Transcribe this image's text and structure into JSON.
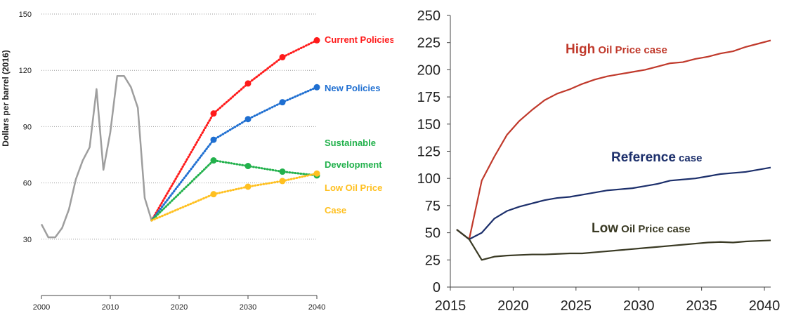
{
  "chart_data": [
    {
      "type": "line",
      "title": "",
      "xlabel": "",
      "ylabel": "Dollars per barrel (2016)",
      "xlim": [
        2000,
        2040
      ],
      "ylim": [
        0,
        150
      ],
      "x_ticks": [
        "2000",
        "2010",
        "2020",
        "2030",
        "2040"
      ],
      "y_ticks": [
        "30",
        "60",
        "90",
        "120",
        "150"
      ],
      "grid": "horizontal dotted",
      "series": [
        {
          "name": "",
          "color": "#9e9e9e",
          "style": "solid",
          "x": [
            2000,
            2001,
            2002,
            2003,
            2004,
            2005,
            2006,
            2007,
            2008,
            2009,
            2010,
            2011,
            2012,
            2013,
            2014,
            2015,
            2016
          ],
          "y": [
            38,
            31,
            31,
            36,
            46,
            62,
            72,
            79,
            110,
            67,
            87,
            117,
            117,
            111,
            100,
            52,
            40
          ]
        },
        {
          "name": "Current Policies",
          "color": "#ff1a1a",
          "style": "dotted",
          "x": [
            2016,
            2025,
            2030,
            2035,
            2040
          ],
          "y": [
            40,
            97,
            113,
            127,
            136
          ]
        },
        {
          "name": "New Policies",
          "color": "#1f6fd1",
          "style": "dotted",
          "x": [
            2016,
            2025,
            2030,
            2035,
            2040
          ],
          "y": [
            40,
            83,
            94,
            103,
            111
          ]
        },
        {
          "name": "Sustainable Development",
          "color": "#22b14c",
          "style": "dotted",
          "x": [
            2016,
            2025,
            2030,
            2035,
            2040
          ],
          "y": [
            40,
            72,
            69,
            66,
            64
          ]
        },
        {
          "name": "Low Oil Price Case",
          "color": "#ffc020",
          "style": "dotted",
          "x": [
            2016,
            2025,
            2030,
            2035,
            2040
          ],
          "y": [
            40,
            54,
            58,
            61,
            65
          ]
        }
      ],
      "legend_labels": [
        {
          "lines": [
            "Current Policies"
          ],
          "color": "#ff1a1a"
        },
        {
          "lines": [
            "New Policies"
          ],
          "color": "#1f6fd1"
        },
        {
          "lines": [
            "Sustainable",
            "Development"
          ],
          "color": "#22b14c"
        },
        {
          "lines": [
            "Low Oil Price",
            "Case"
          ],
          "color": "#ffc020"
        }
      ]
    },
    {
      "type": "line",
      "title": "",
      "xlabel": "",
      "ylabel": "",
      "xlim": [
        2015,
        2040.5
      ],
      "ylim": [
        0,
        250
      ],
      "x_ticks": [
        "2015",
        "2020",
        "2025",
        "2030",
        "2035",
        "2040"
      ],
      "y_ticks": [
        "0",
        "25",
        "50",
        "75",
        "100",
        "125",
        "150",
        "175",
        "200",
        "225",
        "250"
      ],
      "grid": "none",
      "series": [
        {
          "name": "High Oil Price case",
          "label_big": "High",
          "label_small": " Oil Price case",
          "color": "#c0392b",
          "x": [
            2015.5,
            2016.5,
            2017.5,
            2018.5,
            2019.5,
            2020.5,
            2021.5,
            2022.5,
            2023.5,
            2024.5,
            2025.5,
            2026.5,
            2027.5,
            2028.5,
            2029.5,
            2030.5,
            2031.5,
            2032.5,
            2033.5,
            2034.5,
            2035.5,
            2036.5,
            2037.5,
            2038.5,
            2039.5,
            2040.5
          ],
          "y": [
            53,
            44,
            98,
            120,
            140,
            153,
            163,
            172,
            178,
            182,
            187,
            191,
            194,
            196,
            198,
            200,
            203,
            206,
            207,
            210,
            212,
            215,
            217,
            221,
            224,
            227
          ]
        },
        {
          "name": "Reference case",
          "label_big": "Reference",
          "label_small": " case",
          "color": "#1c2f6b",
          "x": [
            2015.5,
            2016.5,
            2017.5,
            2018.5,
            2019.5,
            2020.5,
            2021.5,
            2022.5,
            2023.5,
            2024.5,
            2025.5,
            2026.5,
            2027.5,
            2028.5,
            2029.5,
            2030.5,
            2031.5,
            2032.5,
            2033.5,
            2034.5,
            2035.5,
            2036.5,
            2037.5,
            2038.5,
            2039.5,
            2040.5
          ],
          "y": [
            53,
            44,
            50,
            63,
            70,
            74,
            77,
            80,
            82,
            83,
            85,
            87,
            89,
            90,
            91,
            93,
            95,
            98,
            99,
            100,
            102,
            104,
            105,
            106,
            108,
            110
          ]
        },
        {
          "name": "Low Oil Price case",
          "label_big": "Low",
          "label_small": " Oil Price case",
          "color": "#3a3a24",
          "x": [
            2015.5,
            2016.5,
            2017.5,
            2018.5,
            2019.5,
            2020.5,
            2021.5,
            2022.5,
            2023.5,
            2024.5,
            2025.5,
            2026.5,
            2027.5,
            2028.5,
            2029.5,
            2030.5,
            2031.5,
            2032.5,
            2033.5,
            2034.5,
            2035.5,
            2036.5,
            2037.5,
            2038.5,
            2039.5,
            2040.5
          ],
          "y": [
            53,
            44,
            25,
            28,
            29,
            29.5,
            30,
            30,
            30.5,
            31,
            31,
            32,
            33,
            34,
            35,
            36,
            37,
            38,
            39,
            40,
            41,
            41.5,
            41,
            42,
            42.5,
            43
          ]
        }
      ]
    }
  ]
}
